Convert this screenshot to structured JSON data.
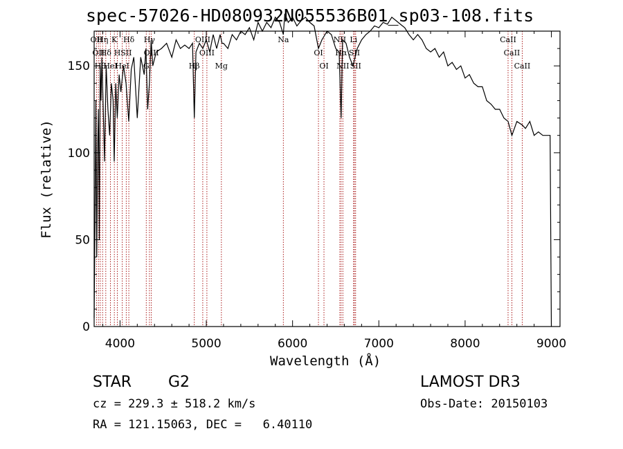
{
  "chart_data": {
    "type": "line",
    "title": "spec-57026-HD080932N055536B01_sp03-108.fits",
    "xlabel": "Wavelength (Å)",
    "ylabel": "Flux (relative)",
    "xlim": [
      3700,
      9100
    ],
    "ylim": [
      0,
      170
    ],
    "x_ticks": [
      4000,
      5000,
      6000,
      7000,
      8000,
      9000
    ],
    "y_ticks": [
      0,
      50,
      100,
      150
    ],
    "grid": false,
    "legend": "none",
    "line_color": "#000000",
    "marker_color": "#a00000",
    "series": [
      {
        "x": [
          3700,
          3710,
          3720,
          3730,
          3740,
          3750,
          3760,
          3770,
          3780,
          3790,
          3800,
          3820,
          3840,
          3860,
          3880,
          3900,
          3920,
          3933,
          3950,
          3968,
          3990,
          4010,
          4040,
          4070,
          4101,
          4130,
          4160,
          4200,
          4240,
          4280,
          4300,
          4320,
          4340,
          4361,
          4380,
          4420,
          4480,
          4540,
          4600,
          4650,
          4700,
          4750,
          4800,
          4840,
          4861,
          4880,
          4920,
          4960,
          5000,
          5040,
          5080,
          5120,
          5160,
          5183,
          5200,
          5250,
          5300,
          5350,
          5400,
          5450,
          5500,
          5550,
          5600,
          5650,
          5700,
          5750,
          5800,
          5850,
          5893,
          5910,
          5950,
          6000,
          6050,
          6100,
          6150,
          6200,
          6250,
          6300,
          6340,
          6400,
          6450,
          6500,
          6540,
          6563,
          6580,
          6620,
          6660,
          6700,
          6750,
          6800,
          6850,
          6900,
          6950,
          7000,
          7050,
          7100,
          7150,
          7200,
          7250,
          7300,
          7350,
          7400,
          7450,
          7500,
          7550,
          7600,
          7650,
          7700,
          7750,
          7800,
          7850,
          7900,
          7950,
          8000,
          8050,
          8100,
          8150,
          8200,
          8250,
          8300,
          8350,
          8400,
          8450,
          8498,
          8542,
          8600,
          8662,
          8700,
          8750,
          8800,
          8850,
          8900,
          8950,
          8985,
          9000
        ],
        "y": [
          5,
          60,
          130,
          40,
          100,
          125,
          50,
          150,
          130,
          155,
          135,
          95,
          150,
          125,
          110,
          140,
          130,
          95,
          140,
          120,
          145,
          135,
          150,
          140,
          118,
          148,
          155,
          120,
          155,
          145,
          160,
          125,
          140,
          165,
          150,
          158,
          160,
          163,
          155,
          165,
          160,
          162,
          160,
          163,
          120,
          158,
          163,
          160,
          165,
          158,
          168,
          160,
          168,
          163,
          163,
          160,
          168,
          165,
          170,
          168,
          172,
          165,
          175,
          170,
          175,
          172,
          178,
          175,
          168,
          180,
          175,
          178,
          173,
          176,
          178,
          175,
          173,
          160,
          165,
          170,
          168,
          160,
          158,
          120,
          165,
          163,
          155,
          150,
          160,
          165,
          168,
          170,
          173,
          172,
          175,
          174,
          178,
          176,
          174,
          172,
          168,
          165,
          168,
          165,
          160,
          158,
          160,
          155,
          158,
          150,
          152,
          148,
          150,
          143,
          145,
          140,
          138,
          138,
          130,
          128,
          125,
          125,
          120,
          118,
          110,
          118,
          116,
          114,
          118,
          110,
          112,
          110,
          110,
          110,
          0
        ]
      }
    ],
    "line_markers": [
      {
        "x": 3727,
        "label": "OII"
      },
      {
        "x": 3750,
        "label": "OII"
      },
      {
        "x": 3771,
        "label": "Hθ"
      },
      {
        "x": 3798,
        "label": "Hη"
      },
      {
        "x": 3835,
        "label": "Hδ"
      },
      {
        "x": 3889,
        "label": "HeI"
      },
      {
        "x": 3934,
        "label": "K"
      },
      {
        "x": 3969,
        "label": "H"
      },
      {
        "x": 4026,
        "label": "HeI"
      },
      {
        "x": 4102,
        "label": "Hδ"
      },
      {
        "x": 4072,
        "label": "SII"
      },
      {
        "x": 4304,
        "label": "G"
      },
      {
        "x": 4341,
        "label": "Hγ"
      },
      {
        "x": 4363,
        "label": "OIII"
      },
      {
        "x": 4861,
        "label": "Hβ"
      },
      {
        "x": 4959,
        "label": "OIII"
      },
      {
        "x": 5007,
        "label": "OIII"
      },
      {
        "x": 5175,
        "label": "Mg"
      },
      {
        "x": 5893,
        "label": "Na"
      },
      {
        "x": 6300,
        "label": "OI"
      },
      {
        "x": 6364,
        "label": "OI"
      },
      {
        "x": 6548,
        "label": "NII"
      },
      {
        "x": 6563,
        "label": "Hα"
      },
      {
        "x": 6583,
        "label": "NII"
      },
      {
        "x": 6707,
        "label": "Li"
      },
      {
        "x": 6717,
        "label": "SII"
      },
      {
        "x": 6731,
        "label": "SII"
      },
      {
        "x": 8498,
        "label": "CaII"
      },
      {
        "x": 8542,
        "label": "CaII"
      },
      {
        "x": 8662,
        "label": "CaII"
      }
    ]
  },
  "info": {
    "class_label": "STAR",
    "subclass": "G2",
    "survey": "LAMOST DR3",
    "cz_text": "cz = 229.3 ± 518.2 km/s",
    "obs_date": "Obs-Date: 20150103",
    "coords": "RA = 121.15063, DEC =   6.40110"
  }
}
